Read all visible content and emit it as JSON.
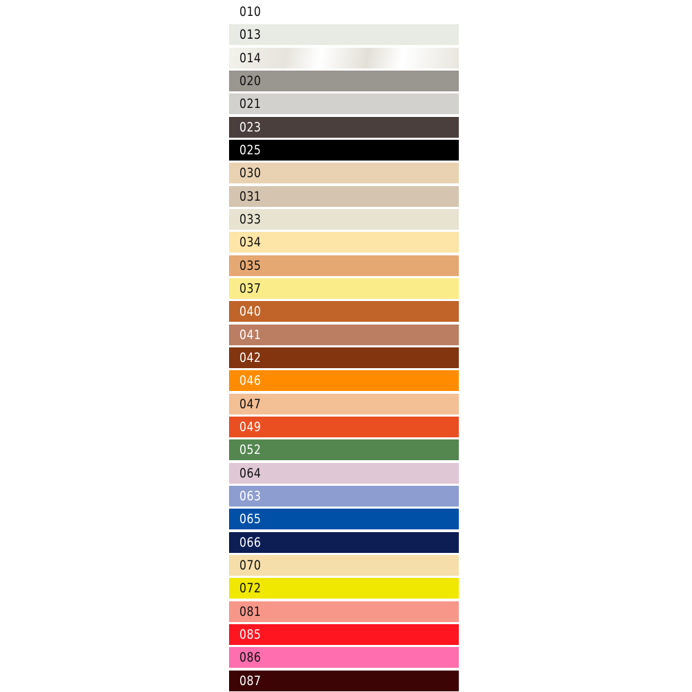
{
  "swatches": [
    {
      "code": "010",
      "color": "#ffffff",
      "text": "#111111"
    },
    {
      "code": "013",
      "color": "#e8ebe3",
      "text": "#111111"
    },
    {
      "code": "014",
      "color": "#f0efe8",
      "text": "#111111",
      "sheen": true
    },
    {
      "code": "020",
      "color": "#9a9690",
      "text": "#111111"
    },
    {
      "code": "021",
      "color": "#d3d1cd",
      "text": "#111111"
    },
    {
      "code": "023",
      "color": "#4a3f3c",
      "text": "#ffffff"
    },
    {
      "code": "025",
      "color": "#000000",
      "text": "#ffffff"
    },
    {
      "code": "030",
      "color": "#e9d2b2",
      "text": "#111111"
    },
    {
      "code": "031",
      "color": "#d5c5b0",
      "text": "#111111"
    },
    {
      "code": "033",
      "color": "#e8e3d1",
      "text": "#111111"
    },
    {
      "code": "034",
      "color": "#fde5a8",
      "text": "#111111"
    },
    {
      "code": "035",
      "color": "#e6a872",
      "text": "#111111"
    },
    {
      "code": "037",
      "color": "#fbec8a",
      "text": "#111111"
    },
    {
      "code": "040",
      "color": "#c0642a",
      "text": "#ffffff"
    },
    {
      "code": "041",
      "color": "#bb7e63",
      "text": "#ffffff"
    },
    {
      "code": "042",
      "color": "#833510",
      "text": "#ffffff"
    },
    {
      "code": "046",
      "color": "#ff8c00",
      "text": "#ffffff"
    },
    {
      "code": "047",
      "color": "#f3bf94",
      "text": "#111111"
    },
    {
      "code": "049",
      "color": "#ea4f22",
      "text": "#ffffff"
    },
    {
      "code": "052",
      "color": "#548750",
      "text": "#ffffff"
    },
    {
      "code": "064",
      "color": "#e0c7d6",
      "text": "#111111"
    },
    {
      "code": "063",
      "color": "#8d9dd0",
      "text": "#ffffff"
    },
    {
      "code": "065",
      "color": "#0050a8",
      "text": "#ffffff"
    },
    {
      "code": "066",
      "color": "#0d1e55",
      "text": "#ffffff"
    },
    {
      "code": "070",
      "color": "#f6deab",
      "text": "#111111"
    },
    {
      "code": "072",
      "color": "#f0e800",
      "text": "#111111"
    },
    {
      "code": "081",
      "color": "#f7978a",
      "text": "#111111"
    },
    {
      "code": "085",
      "color": "#ff1520",
      "text": "#ffffff"
    },
    {
      "code": "086",
      "color": "#ff6eae",
      "text": "#111111"
    },
    {
      "code": "087",
      "color": "#3c0404",
      "text": "#ffffff"
    }
  ]
}
